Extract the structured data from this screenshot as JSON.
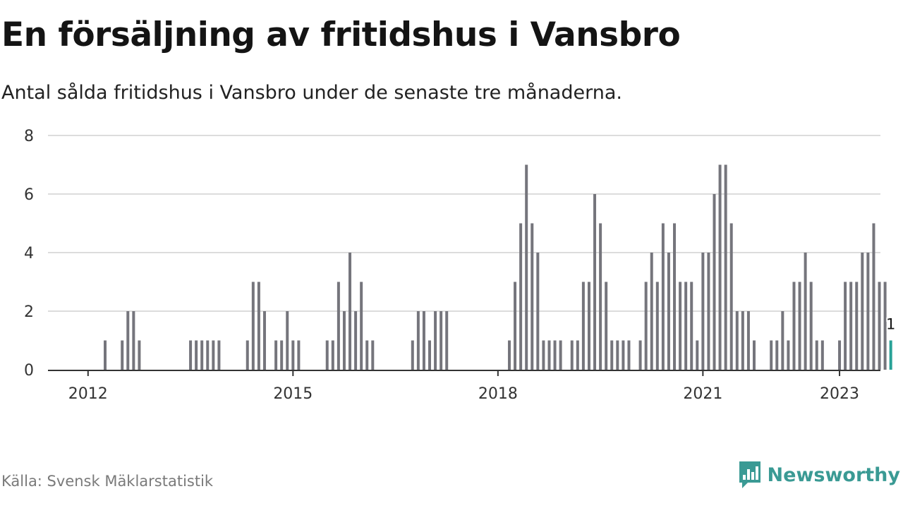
{
  "header": {
    "title": "En försäljning av fritidshus i Vansbro",
    "subtitle": "Antal sålda fritidshus i Vansbro under de senaste tre månaderna."
  },
  "footer": {
    "source": "Källa: Svensk Mäklarstatistik",
    "brand": "Newsworthy"
  },
  "colors": {
    "bar": "#75757c",
    "highlight": "#28a197",
    "grid": "#dcdcdc",
    "axis": "#333333",
    "brand": "#3a9a94"
  },
  "chart_data": {
    "type": "bar",
    "x_unit": "month",
    "start_month": "2012-01",
    "values": [
      0,
      0,
      0,
      1,
      0,
      0,
      1,
      2,
      2,
      1,
      0,
      0,
      0,
      0,
      0,
      0,
      0,
      0,
      1,
      1,
      1,
      1,
      1,
      1,
      0,
      0,
      0,
      0,
      1,
      3,
      3,
      2,
      0,
      1,
      1,
      2,
      1,
      1,
      0,
      0,
      0,
      0,
      1,
      1,
      3,
      2,
      4,
      2,
      3,
      1,
      1,
      0,
      0,
      0,
      0,
      0,
      0,
      1,
      2,
      2,
      1,
      2,
      2,
      2,
      0,
      0,
      0,
      0,
      0,
      0,
      0,
      0,
      0,
      0,
      1,
      3,
      5,
      7,
      5,
      4,
      1,
      1,
      1,
      1,
      0,
      1,
      1,
      3,
      3,
      6,
      5,
      3,
      1,
      1,
      1,
      1,
      0,
      1,
      3,
      4,
      3,
      5,
      4,
      5,
      3,
      3,
      3,
      1,
      4,
      4,
      6,
      7,
      7,
      5,
      2,
      2,
      2,
      1,
      0,
      0,
      1,
      1,
      2,
      1,
      3,
      3,
      4,
      3,
      1,
      1,
      0,
      0,
      1,
      3,
      3,
      3,
      4,
      4,
      5,
      3,
      3,
      1
    ],
    "highlight_last": true,
    "last_value_label": "1",
    "ylim": [
      0,
      8
    ],
    "yticks": [
      "0",
      "2",
      "4",
      "6",
      "8"
    ],
    "xticks": [
      {
        "label": "2012",
        "month_index": 0
      },
      {
        "label": "2015",
        "month_index": 36
      },
      {
        "label": "2018",
        "month_index": 72
      },
      {
        "label": "2021",
        "month_index": 108
      },
      {
        "label": "2023",
        "month_index": 132
      }
    ],
    "grid": true,
    "xlabel": "",
    "ylabel": ""
  }
}
